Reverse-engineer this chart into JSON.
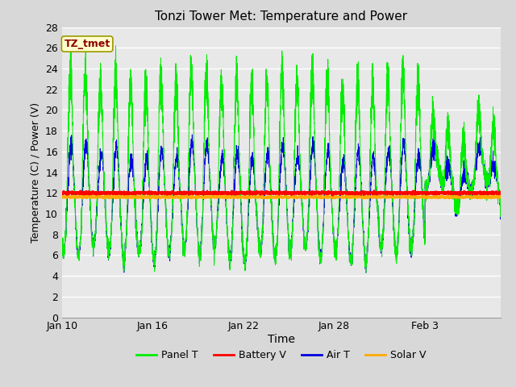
{
  "title": "Tonzi Tower Met: Temperature and Power",
  "xlabel": "Time",
  "ylabel": "Temperature (C) / Power (V)",
  "ylim": [
    0,
    28
  ],
  "yticks": [
    0,
    2,
    4,
    6,
    8,
    10,
    12,
    14,
    16,
    18,
    20,
    22,
    24,
    26,
    28
  ],
  "xtick_labels": [
    "Jan 10",
    "Jan 16",
    "Jan 22",
    "Jan 28",
    "Feb 3"
  ],
  "xtick_positions": [
    0,
    6,
    12,
    18,
    24
  ],
  "total_days": 29,
  "battery_v": 12.0,
  "solar_v": 11.6,
  "panel_color": "#00ee00",
  "battery_color": "#ff0000",
  "air_color": "#0000dd",
  "solar_color": "#ffaa00",
  "bg_color": "#e8e8e8",
  "fig_bg_color": "#d8d8d8",
  "legend_labels": [
    "Panel T",
    "Battery V",
    "Air T",
    "Solar V"
  ],
  "annotation_text": "TZ_tmet",
  "annotation_color": "#8b0000",
  "annotation_bg": "#ffffcc",
  "annotation_border": "#999900"
}
